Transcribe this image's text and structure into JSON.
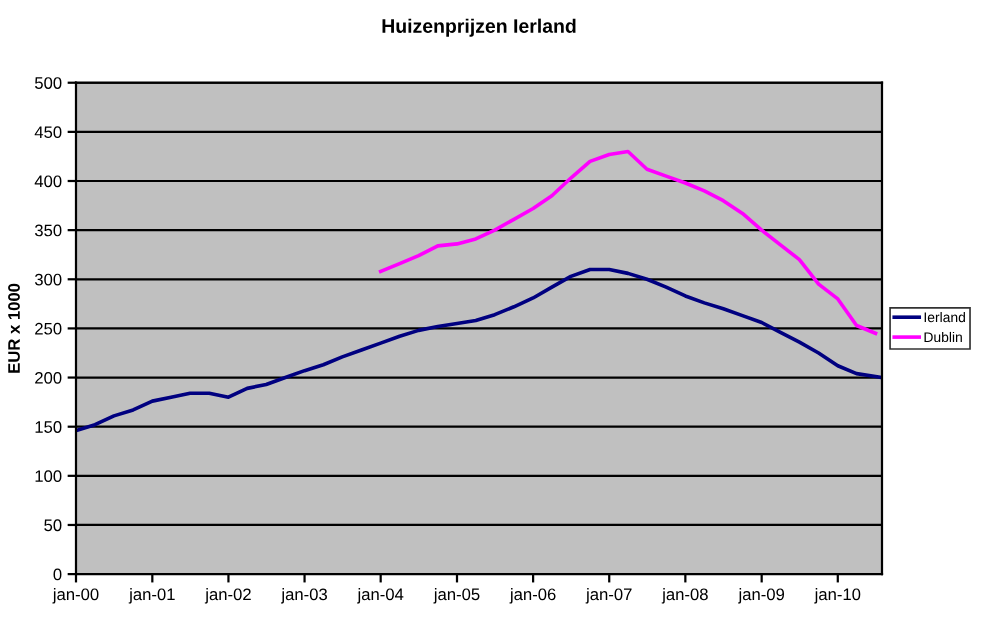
{
  "chart_data": {
    "type": "line",
    "title": "Huizenprijzen Ierland",
    "ylabel": "EUR x 1000",
    "xlim": [
      "2000-01",
      "2010-08"
    ],
    "xticks": [
      {
        "value": "2000-01",
        "label": "jan-00"
      },
      {
        "value": "2001-01",
        "label": "jan-01"
      },
      {
        "value": "2002-01",
        "label": "jan-02"
      },
      {
        "value": "2003-01",
        "label": "jan-03"
      },
      {
        "value": "2004-01",
        "label": "jan-04"
      },
      {
        "value": "2005-01",
        "label": "jan-05"
      },
      {
        "value": "2006-01",
        "label": "jan-06"
      },
      {
        "value": "2007-01",
        "label": "jan-07"
      },
      {
        "value": "2008-01",
        "label": "jan-08"
      },
      {
        "value": "2009-01",
        "label": "jan-09"
      },
      {
        "value": "2010-01",
        "label": "jan-10"
      }
    ],
    "ylim": [
      0,
      500
    ],
    "yticks": [
      0,
      50,
      100,
      150,
      200,
      250,
      300,
      350,
      400,
      450,
      500
    ],
    "grid": "y",
    "legend": "right",
    "series": [
      {
        "name": "Ierland",
        "color": "#000080",
        "x": [
          "2000-01",
          "2000-04",
          "2000-07",
          "2000-10",
          "2001-01",
          "2001-04",
          "2001-07",
          "2001-10",
          "2002-01",
          "2002-04",
          "2002-07",
          "2002-10",
          "2003-01",
          "2003-04",
          "2003-07",
          "2003-10",
          "2004-01",
          "2004-04",
          "2004-07",
          "2004-10",
          "2005-01",
          "2005-04",
          "2005-07",
          "2005-10",
          "2006-01",
          "2006-04",
          "2006-07",
          "2006-10",
          "2007-01",
          "2007-04",
          "2007-07",
          "2007-10",
          "2008-01",
          "2008-04",
          "2008-07",
          "2008-10",
          "2009-01",
          "2009-04",
          "2009-07",
          "2009-10",
          "2010-01",
          "2010-04",
          "2010-07",
          "2010-08"
        ],
        "values": [
          146,
          152,
          161,
          167,
          176,
          180,
          184,
          184,
          180,
          189,
          193,
          200,
          207,
          213,
          221,
          228,
          235,
          242,
          248,
          252,
          255,
          258,
          264,
          272,
          281,
          292,
          303,
          310,
          310,
          306,
          300,
          292,
          283,
          276,
          270,
          263,
          256,
          246,
          236,
          225,
          212,
          204,
          201,
          200
        ]
      },
      {
        "name": "Dublin",
        "color": "#ff00ff",
        "x": [
          "2004-01",
          "2004-04",
          "2004-07",
          "2004-10",
          "2005-01",
          "2005-04",
          "2005-07",
          "2005-10",
          "2006-01",
          "2006-04",
          "2006-07",
          "2006-10",
          "2007-01",
          "2007-04",
          "2007-07",
          "2007-10",
          "2008-01",
          "2008-04",
          "2008-07",
          "2008-10",
          "2009-01",
          "2009-04",
          "2009-07",
          "2009-10",
          "2010-01",
          "2010-04",
          "2010-07"
        ],
        "values": [
          308,
          316,
          324,
          334,
          336,
          341,
          350,
          361,
          372,
          385,
          403,
          420,
          427,
          430,
          412,
          405,
          398,
          390,
          380,
          367,
          350,
          335,
          320,
          295,
          280,
          253,
          245
        ]
      }
    ]
  }
}
